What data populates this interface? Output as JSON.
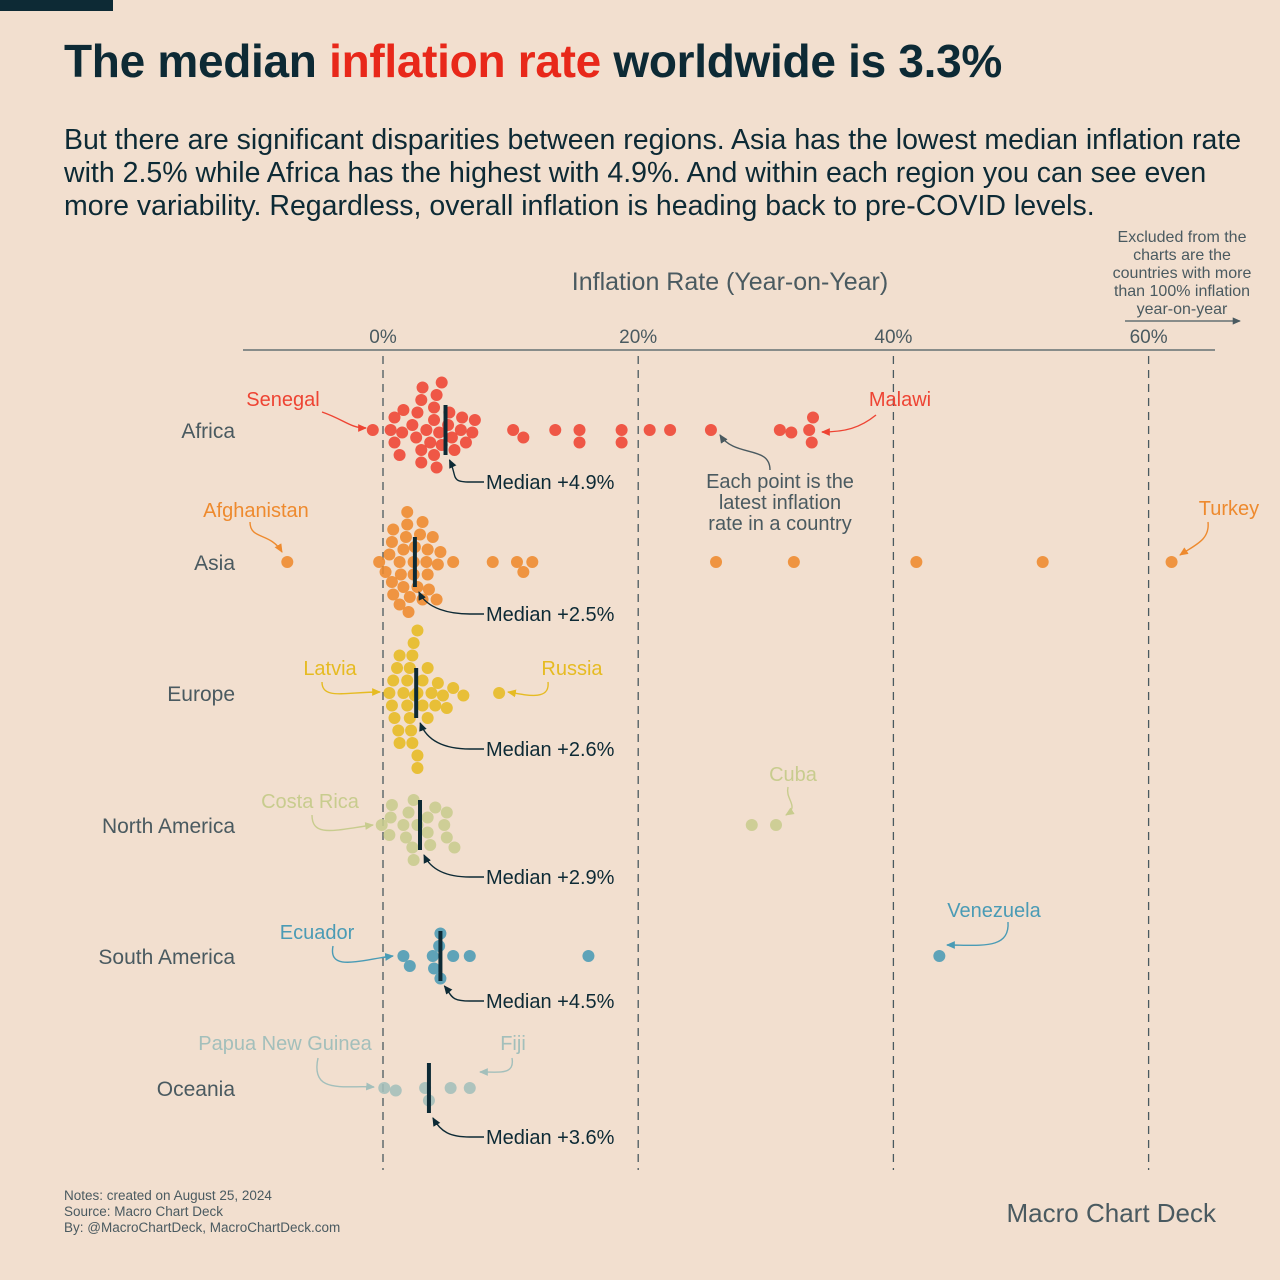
{
  "title": {
    "prefix": "The median ",
    "highlight": "inflation rate",
    "suffix": " worldwide is 3.3%"
  },
  "subtitle": "But there are significant disparities between regions. Asia has the lowest median inflation rate with 2.5% while Africa has the highest with 4.9%. And within each region you can see even more variability. Regardless, overall inflation is heading back to pre-COVID levels.",
  "colors": {
    "title": "#0d2a35",
    "highlight": "#e8281a",
    "background": "#f2dfcf"
  },
  "notes": [
    "Notes: created on August 25, 2024",
    "Source: Macro Chart Deck",
    "By: @MacroChartDeck, MacroChartDeck.com"
  ],
  "brand": "Macro Chart Deck",
  "chart_data": {
    "type": "scatter",
    "subtype": "beeswarm",
    "xlabel": "Inflation Rate (Year-on-Year)",
    "xlim": [
      -11,
      65
    ],
    "xticks": [
      0,
      20,
      40,
      60
    ],
    "xtick_labels": [
      "0%",
      "20%",
      "40%",
      "60%"
    ],
    "grid": "vertical dashed",
    "excluded_note": [
      "Excluded from the",
      "charts are the",
      "countries with more",
      "than 100% inflation",
      "year-on-year"
    ],
    "point_note": [
      "Each point is the",
      "latest inflation",
      "rate in a country"
    ],
    "series": [
      {
        "name": "Africa",
        "color": "#ee4433",
        "median": 4.9,
        "median_label": "Median +4.9%",
        "values": [
          -0.8,
          3.4,
          4.6,
          1.6,
          3.0,
          4.0,
          5.4,
          6.5,
          0.9,
          1.3,
          3.0,
          4.2,
          6.1,
          2.6,
          4.0,
          5.1,
          6.2,
          7.2,
          3.1,
          1.5,
          0.6,
          4.4,
          5.2,
          2.7,
          0.9,
          4.0,
          5.6,
          7.0,
          3.0,
          2.3,
          4.2,
          4.6,
          3.7,
          10.2,
          11.0,
          13.5,
          15.4,
          15.4,
          18.7,
          18.7,
          20.9,
          22.5,
          25.7,
          31.1,
          32.0,
          33.4,
          33.6,
          33.7
        ],
        "annotations": [
          {
            "label": "Senegal",
            "value": -0.8
          },
          {
            "label": "Malawi",
            "value": 33.7
          }
        ]
      },
      {
        "name": "Asia",
        "color": "#ee8a2e",
        "median": 2.5,
        "median_label": "Median +2.5%",
        "values": [
          -7.5,
          1.9,
          2.5,
          3.5,
          0.8,
          1.4,
          2.4,
          3.1,
          1.6,
          3.6,
          0.2,
          0.7,
          1.3,
          2.0,
          3.1,
          4.5,
          4.2,
          -0.3,
          0.7,
          1.8,
          2.9,
          3.5,
          4.3,
          5.5,
          0.5,
          1.3,
          2.1,
          3.4,
          0.8,
          1.6,
          3.9,
          2.4,
          2.7,
          1.9,
          8.6,
          10.5,
          11.0,
          11.7,
          26.1,
          32.2,
          41.8,
          51.7,
          61.8
        ],
        "annotations": [
          {
            "label": "Afghanistan",
            "value": -7.5
          },
          {
            "label": "Turkey",
            "value": 61.8
          }
        ]
      },
      {
        "name": "Europe",
        "color": "#e6bb22",
        "median": 2.6,
        "median_label": "Median +2.6%",
        "values": [
          0.5,
          2.2,
          2.5,
          2.7,
          2.3,
          3.1,
          1.3,
          0.9,
          1.9,
          3.5,
          4.3,
          0.8,
          1.6,
          2.7,
          3.8,
          4.7,
          5.5,
          0.7,
          1.3,
          2.1,
          3.1,
          4.1,
          5.0,
          6.3,
          1.1,
          1.9,
          2.7,
          3.5,
          1.2,
          2.1,
          2.4,
          2.7,
          2.3,
          9.1
        ],
        "annotations": [
          {
            "label": "Latvia",
            "value": 0.5
          },
          {
            "label": "Russia",
            "value": 9.1
          }
        ]
      },
      {
        "name": "North America",
        "color": "#c8cc8e",
        "median": 2.9,
        "median_label": "Median +2.9%",
        "values": [
          -0.1,
          2.3,
          4.1,
          0.7,
          2.7,
          3.7,
          5.6,
          1.6,
          2.4,
          5.0,
          1.8,
          3.5,
          5.0,
          0.5,
          2.0,
          3.5,
          0.6,
          4.8,
          2.4,
          28.9,
          30.8
        ],
        "annotations": [
          {
            "label": "Costa Rica",
            "value": -0.1
          },
          {
            "label": "Cuba",
            "value": 30.8
          }
        ]
      },
      {
        "name": "South America",
        "color": "#4a9bb5",
        "median": 4.5,
        "median_label": "Median +4.5%",
        "values": [
          1.6,
          2.1,
          3.9,
          4.0,
          4.4,
          4.5,
          4.5,
          5.5,
          6.8,
          16.1,
          43.6
        ],
        "annotations": [
          {
            "label": "Ecuador",
            "value": 1.6
          },
          {
            "label": "Venezuela",
            "value": 43.6
          }
        ]
      },
      {
        "name": "Oceania",
        "color": "#a3bfbb",
        "median": 3.6,
        "median_label": "Median +3.6%",
        "values": [
          0.1,
          1.0,
          3.3,
          3.6,
          5.3,
          6.8
        ],
        "annotations": [
          {
            "label": "Papua New Guinea",
            "value": 0.1
          },
          {
            "label": "Fiji",
            "value": 6.8
          }
        ]
      }
    ]
  }
}
